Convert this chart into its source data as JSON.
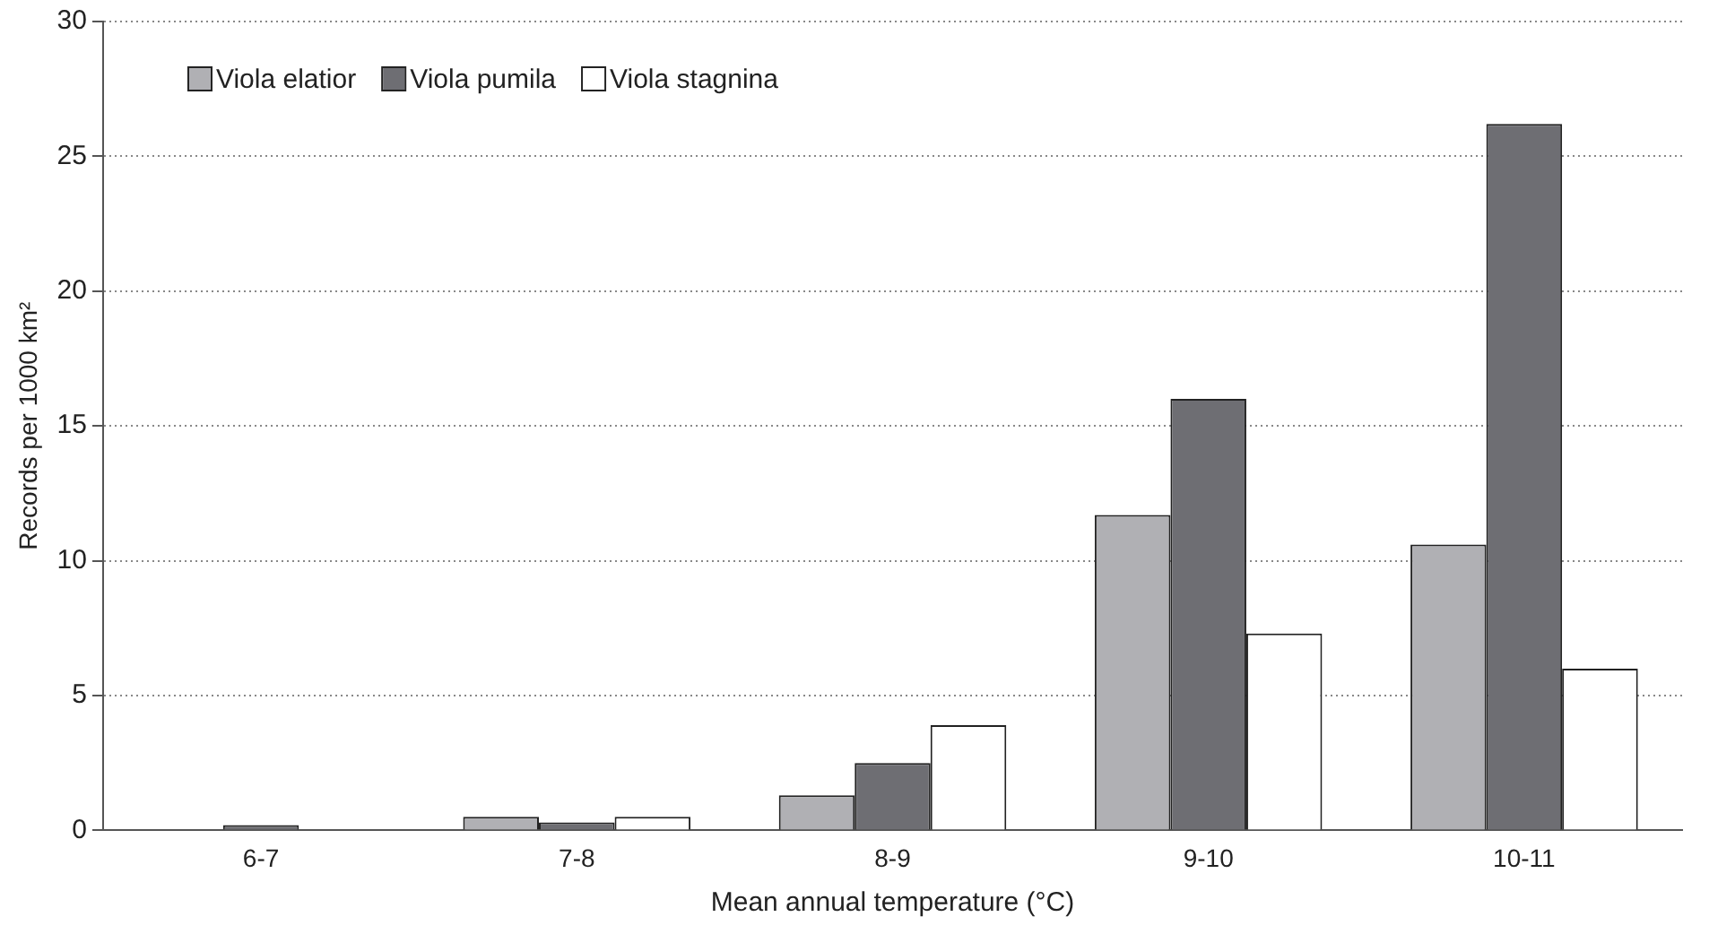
{
  "chart_data": {
    "type": "bar",
    "xlabel": "Mean annual temperature (°C)",
    "ylabel": "Records per 1000 km²",
    "categories": [
      "6-7",
      "7-8",
      "8-9",
      "9-10",
      "10-11"
    ],
    "series": [
      {
        "name": "Viola elatior",
        "color": "#b0b0b4",
        "values": [
          0,
          0.5,
          1.3,
          11.7,
          10.6
        ]
      },
      {
        "name": "Viola pumila",
        "color": "#6e6e73",
        "values": [
          0.2,
          0.3,
          2.5,
          16,
          26.2
        ]
      },
      {
        "name": "Viola stagnina",
        "color": "#ffffff",
        "values": [
          0,
          0.5,
          3.9,
          7.3,
          6
        ]
      }
    ],
    "ylim": [
      0,
      30
    ],
    "yticks": [
      0,
      5,
      10,
      15,
      20,
      25,
      30
    ],
    "grid": "y",
    "legend": "top left"
  }
}
